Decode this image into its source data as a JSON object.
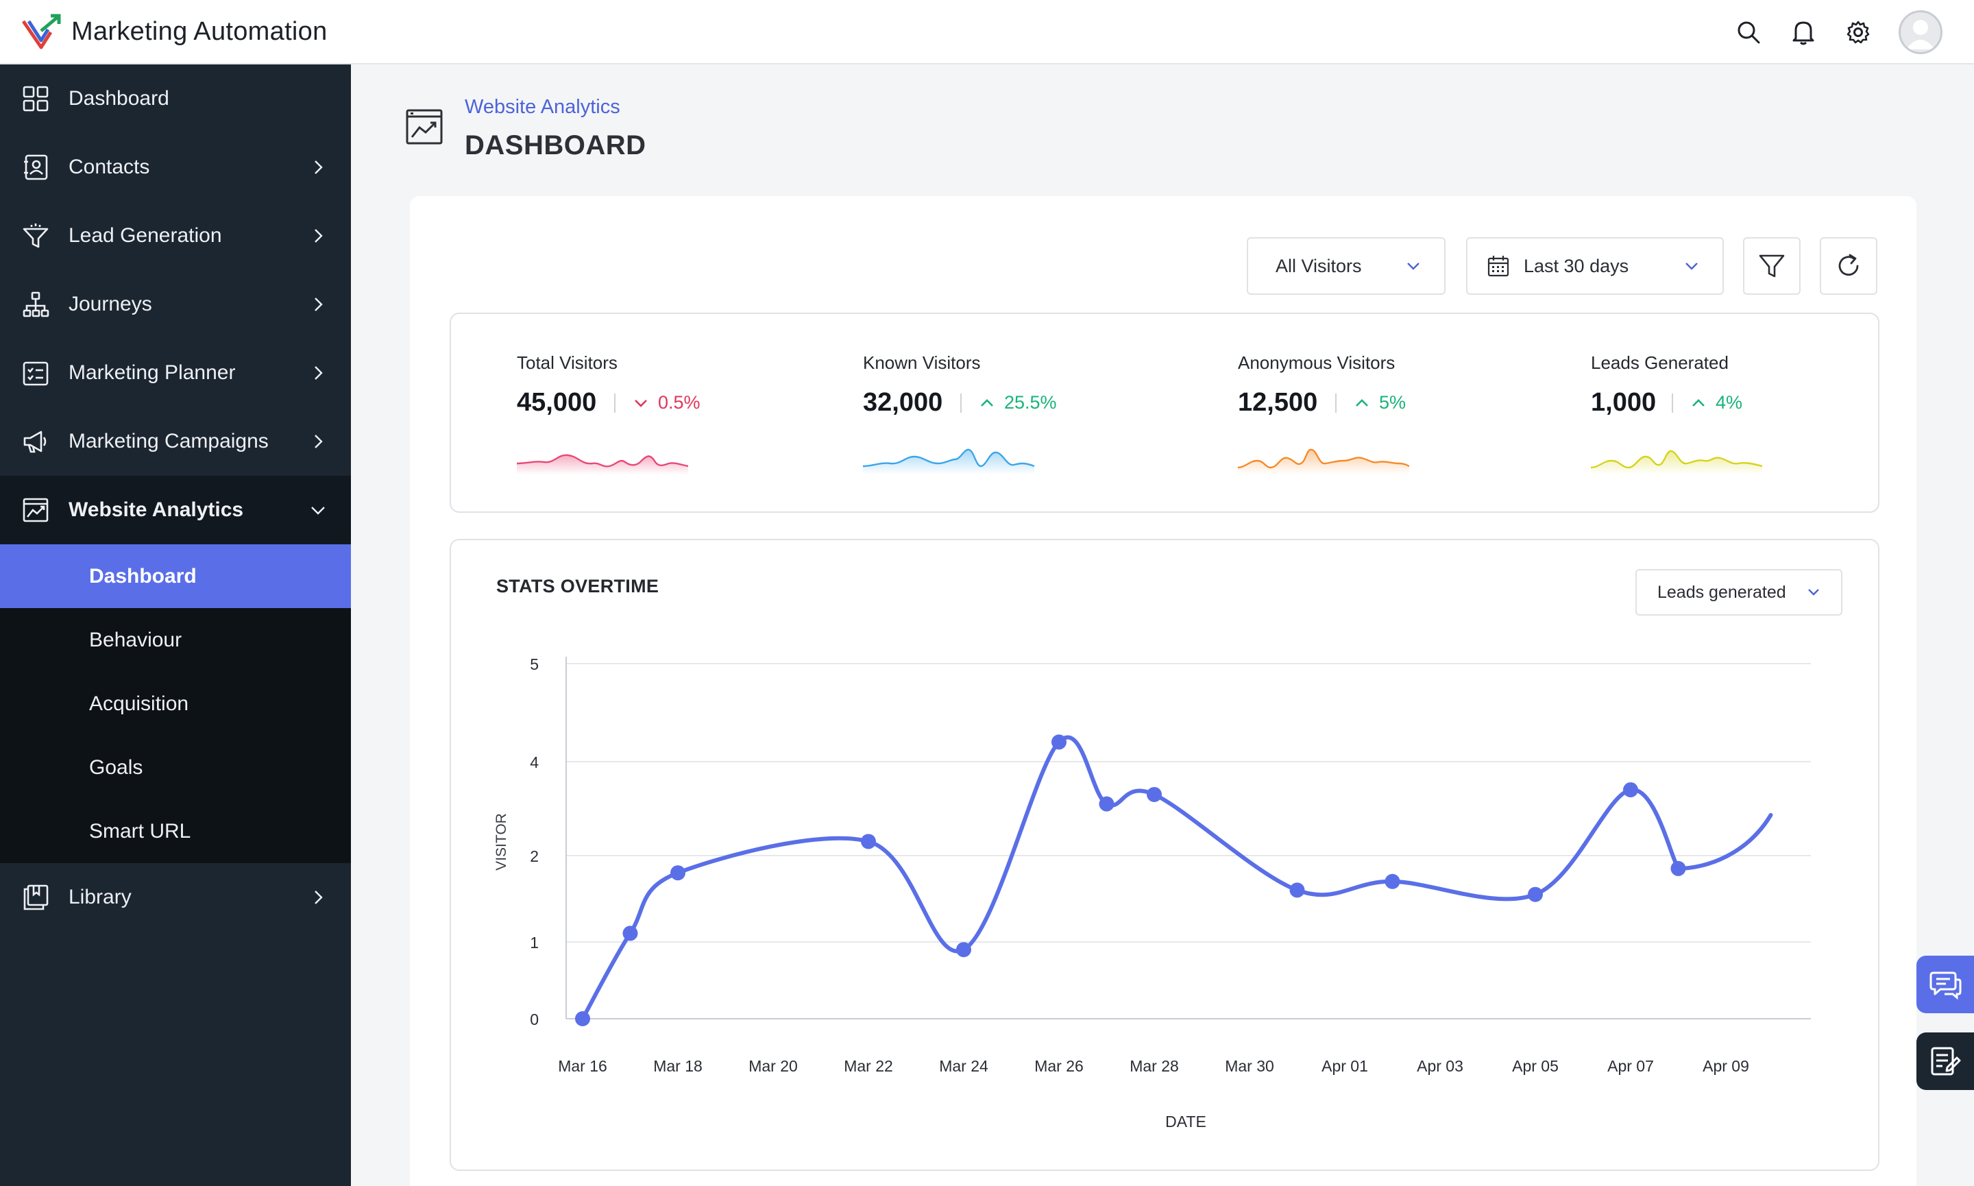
{
  "app": {
    "title": "Marketing Automation"
  },
  "header_icons": [
    "search-icon",
    "bell-icon",
    "gear-icon",
    "avatar"
  ],
  "sidebar": {
    "items": [
      {
        "label": "Dashboard",
        "icon": "grid-icon",
        "has_chevron": false
      },
      {
        "label": "Contacts",
        "icon": "contact-card-icon",
        "has_chevron": true
      },
      {
        "label": "Lead Generation",
        "icon": "funnel-icon",
        "has_chevron": true
      },
      {
        "label": "Journeys",
        "icon": "hierarchy-icon",
        "has_chevron": true
      },
      {
        "label": "Marketing Planner",
        "icon": "checklist-icon",
        "has_chevron": true
      },
      {
        "label": "Marketing Campaigns",
        "icon": "megaphone-icon",
        "has_chevron": true
      },
      {
        "label": "Website Analytics",
        "icon": "chart-trend-icon",
        "expanded": true
      },
      {
        "label": "Library",
        "icon": "book-icon",
        "has_chevron": true
      }
    ],
    "sub_items": [
      {
        "label": "Dashboard",
        "selected": true
      },
      {
        "label": "Behaviour"
      },
      {
        "label": "Acquisition"
      },
      {
        "label": "Goals"
      },
      {
        "label": "Smart URL"
      }
    ]
  },
  "page": {
    "breadcrumb": "Website Analytics",
    "title": "DASHBOARD"
  },
  "filters": {
    "visitors": "All Visitors",
    "range": "Last 30 days"
  },
  "metrics": [
    {
      "label": "Total Visitors",
      "value": "45,000",
      "change": "0.5%",
      "direction": "down",
      "color": "#e0365b"
    },
    {
      "label": "Known Visitors",
      "value": "32,000",
      "change": "25.5%",
      "direction": "up",
      "color": "#19b37a"
    },
    {
      "label": "Anonymous Visitors",
      "value": "12,500",
      "change": "5%",
      "direction": "up",
      "color": "#19b37a"
    },
    {
      "label": "Leads Generated",
      "value": "1,000",
      "change": "4%",
      "direction": "up",
      "color": "#19b37a"
    }
  ],
  "sparkline_colors": [
    "#e84a77",
    "#3aa6e8",
    "#f58b2a",
    "#d6d41a"
  ],
  "chart_panel": {
    "title": "STATS OVERTIME",
    "metric_select": "Leads generated"
  },
  "chart_data": {
    "type": "line",
    "xlabel": "DATE",
    "ylabel": "VISITOR",
    "y_ticks": [
      "0",
      "1",
      "2",
      "4",
      "5"
    ],
    "x_tick_labels": [
      "Mar 16",
      "Mar 18",
      "Mar 20",
      "Mar 22",
      "Mar 24",
      "Mar 26",
      "Mar 28",
      "Mar 30",
      "Apr 01",
      "Apr 03",
      "Apr 05",
      "Apr 07",
      "Apr 09"
    ],
    "series": [
      {
        "color": "#5a6fe7",
        "points": [
          {
            "x": "Mar 16",
            "y": 0
          },
          {
            "x": "Mar 17",
            "y": 1.1
          },
          {
            "x": "Mar 18",
            "y": 1.8
          },
          {
            "x": "Mar 22",
            "y": 2.3
          },
          {
            "x": "Mar 24",
            "y": 0.9
          },
          {
            "x": "Mar 26",
            "y": 4.2
          },
          {
            "x": "Mar 27",
            "y": 3.1
          },
          {
            "x": "Mar 28",
            "y": 3.3
          },
          {
            "x": "Mar 31",
            "y": 1.6
          },
          {
            "x": "Apr 02",
            "y": 1.7
          },
          {
            "x": "Apr 05",
            "y": 1.55
          },
          {
            "x": "Apr 07",
            "y": 3.4
          },
          {
            "x": "Apr 08",
            "y": 1.85
          }
        ]
      }
    ]
  },
  "float_buttons": [
    "chat-icon",
    "notes-icon"
  ]
}
